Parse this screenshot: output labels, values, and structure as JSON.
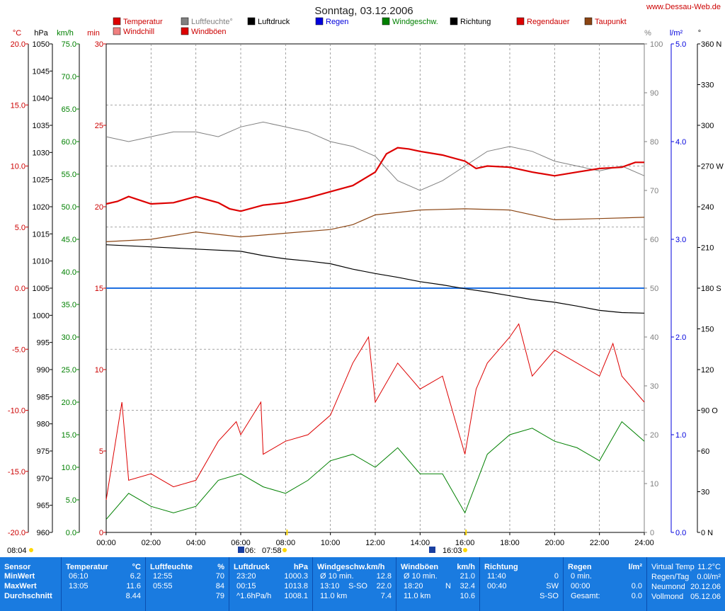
{
  "header": {
    "title": "Sonntag, 03.12.2006",
    "site": "www.Dessau-Web.de",
    "legend": [
      {
        "label": "Temperatur",
        "color": "#dd0000"
      },
      {
        "label": "Windchill",
        "color": "#f08080"
      },
      {
        "label": "Luftfeuchte°",
        "color": "#808080"
      },
      {
        "label": "Windböen",
        "color": "#dd0000"
      },
      {
        "label": "Luftdruck",
        "color": "#000000"
      },
      {
        "label": "Regen",
        "color": "#0000dd"
      },
      {
        "label": "Windgeschw.",
        "color": "#008000"
      },
      {
        "label": "Richtung",
        "color": "#000000"
      },
      {
        "label": "Regendauer",
        "color": "#dd0000"
      },
      {
        "label": "Taupunkt",
        "color": "#8b4513"
      }
    ]
  },
  "axes": {
    "units": {
      "temp": "°C",
      "pressure": "hPa",
      "wind": "km/h",
      "minutes": "min",
      "humidity": "%",
      "rain": "l/m²",
      "direction": "°"
    },
    "temp_ticks": [
      "20.0",
      "15.0",
      "10.0",
      "5.0",
      "0.0",
      "-5.0",
      "-10.0",
      "-15.0",
      "-20.0"
    ],
    "pressure_ticks": [
      "1050",
      "1045",
      "1040",
      "1035",
      "1030",
      "1025",
      "1020",
      "1015",
      "1010",
      "1005",
      "1000",
      "995",
      "990",
      "985",
      "980",
      "975",
      "970",
      "965",
      "960"
    ],
    "wind_ticks": [
      "75.0",
      "70.0",
      "65.0",
      "60.0",
      "55.0",
      "50.0",
      "45.0",
      "40.0",
      "35.0",
      "30.0",
      "25.0",
      "20.0",
      "15.0",
      "10.0",
      "5.0",
      "0.0"
    ],
    "minutes_ticks": [
      "30",
      "25",
      "20",
      "15",
      "10",
      "5",
      "0"
    ],
    "humidity_ticks": [
      "100",
      "90",
      "80",
      "70",
      "60",
      "50",
      "40",
      "30",
      "20",
      "10",
      "0"
    ],
    "rain_ticks": [
      "5.0",
      "4.0",
      "3.0",
      "2.0",
      "1.0",
      "0.0"
    ],
    "direction_ticks": [
      "360 N",
      "330",
      "300",
      "270 W",
      "240",
      "210",
      "180 S",
      "150",
      "120",
      "90 O",
      "60",
      "30",
      "0 N"
    ],
    "time_ticks": [
      "00:00",
      "02:00",
      "04:00",
      "06:00",
      "08:00",
      "10:00",
      "12:00",
      "14:00",
      "16:00",
      "18:00",
      "20:00",
      "22:00",
      "24:00"
    ]
  },
  "sun_moon": {
    "sunrise": "08:04",
    "sunset": "16:03",
    "moon_event_1": "06:",
    "moon_event_2": "07:58"
  },
  "chart_data": {
    "type": "line",
    "title": "Sonntag, 03.12.2006",
    "x_range_hours": [
      0,
      24
    ],
    "series": [
      {
        "name": "Temperatur",
        "unit": "°C",
        "axis": "temp",
        "points": [
          [
            0,
            6.9
          ],
          [
            0.5,
            7.1
          ],
          [
            1,
            7.5
          ],
          [
            2,
            6.9
          ],
          [
            3,
            7.0
          ],
          [
            4,
            7.5
          ],
          [
            5,
            7.0
          ],
          [
            5.5,
            6.5
          ],
          [
            6,
            6.3
          ],
          [
            7,
            6.8
          ],
          [
            8,
            7.0
          ],
          [
            9,
            7.4
          ],
          [
            10,
            7.9
          ],
          [
            11,
            8.4
          ],
          [
            12,
            9.5
          ],
          [
            12.5,
            11.0
          ],
          [
            13,
            11.5
          ],
          [
            13.5,
            11.4
          ],
          [
            14,
            11.2
          ],
          [
            15,
            10.9
          ],
          [
            16,
            10.4
          ],
          [
            16.5,
            9.8
          ],
          [
            17,
            10.0
          ],
          [
            18,
            9.9
          ],
          [
            19,
            9.5
          ],
          [
            20,
            9.2
          ],
          [
            21,
            9.5
          ],
          [
            22,
            9.8
          ],
          [
            23,
            9.9
          ],
          [
            23.6,
            10.3
          ],
          [
            24,
            10.3
          ]
        ]
      },
      {
        "name": "Luftfeuchte°",
        "unit": "%",
        "axis": "humidity",
        "points": [
          [
            0,
            81
          ],
          [
            1,
            80
          ],
          [
            2,
            81
          ],
          [
            3,
            82
          ],
          [
            4,
            82
          ],
          [
            5,
            81
          ],
          [
            6,
            83
          ],
          [
            7,
            84
          ],
          [
            8,
            83
          ],
          [
            9,
            82
          ],
          [
            10,
            80
          ],
          [
            11,
            79
          ],
          [
            12,
            77
          ],
          [
            13,
            72
          ],
          [
            14,
            70
          ],
          [
            15,
            72
          ],
          [
            16,
            75
          ],
          [
            17,
            78
          ],
          [
            18,
            79
          ],
          [
            19,
            78
          ],
          [
            20,
            76
          ],
          [
            21,
            75
          ],
          [
            22,
            74
          ],
          [
            23,
            75
          ],
          [
            24,
            73
          ]
        ]
      },
      {
        "name": "Luftdruck",
        "unit": "hPa",
        "axis": "pressure",
        "points": [
          [
            0,
            1013
          ],
          [
            2,
            1012.6
          ],
          [
            4,
            1012.2
          ],
          [
            6,
            1011.8
          ],
          [
            7,
            1011.0
          ],
          [
            8,
            1010.4
          ],
          [
            9,
            1010.0
          ],
          [
            10,
            1009.5
          ],
          [
            11,
            1008.5
          ],
          [
            12,
            1007.7
          ],
          [
            13,
            1007.0
          ],
          [
            14,
            1006.2
          ],
          [
            15,
            1005.6
          ],
          [
            16,
            1004.9
          ],
          [
            17,
            1004.3
          ],
          [
            18,
            1003.6
          ],
          [
            19,
            1002.9
          ],
          [
            20,
            1002.4
          ],
          [
            21,
            1001.7
          ],
          [
            22,
            1000.9
          ],
          [
            23,
            1000.5
          ],
          [
            24,
            1000.4
          ]
        ]
      },
      {
        "name": "Taupunkt",
        "unit": "°C",
        "axis": "temp",
        "points": [
          [
            0,
            3.8
          ],
          [
            2,
            4.0
          ],
          [
            4,
            4.6
          ],
          [
            6,
            4.2
          ],
          [
            8,
            4.5
          ],
          [
            10,
            4.8
          ],
          [
            11,
            5.2
          ],
          [
            12,
            6.0
          ],
          [
            13,
            6.2
          ],
          [
            14,
            6.4
          ],
          [
            16,
            6.5
          ],
          [
            18,
            6.4
          ],
          [
            20,
            5.6
          ],
          [
            22,
            5.7
          ],
          [
            24,
            5.8
          ]
        ]
      },
      {
        "name": "Windgeschw.",
        "unit": "km/h",
        "axis": "wind",
        "points": [
          [
            0,
            2
          ],
          [
            1,
            6
          ],
          [
            2,
            4
          ],
          [
            3,
            3
          ],
          [
            4,
            4
          ],
          [
            5,
            8
          ],
          [
            6,
            9
          ],
          [
            7,
            7
          ],
          [
            8,
            6
          ],
          [
            9,
            8
          ],
          [
            10,
            11
          ],
          [
            11,
            12
          ],
          [
            12,
            10
          ],
          [
            13,
            13
          ],
          [
            14,
            9
          ],
          [
            15,
            9
          ],
          [
            15.5,
            6
          ],
          [
            16,
            3
          ],
          [
            17,
            12
          ],
          [
            18,
            15
          ],
          [
            19,
            16
          ],
          [
            20,
            14
          ],
          [
            21,
            13
          ],
          [
            22,
            11
          ],
          [
            23,
            17
          ],
          [
            24,
            14
          ]
        ]
      },
      {
        "name": "Windböen",
        "unit": "km/h",
        "axis": "wind",
        "points": [
          [
            0,
            5
          ],
          [
            0.7,
            20
          ],
          [
            1,
            8
          ],
          [
            2,
            9
          ],
          [
            3,
            7
          ],
          [
            4,
            8
          ],
          [
            5,
            14
          ],
          [
            5.8,
            17
          ],
          [
            6,
            15
          ],
          [
            6.9,
            20
          ],
          [
            7,
            12
          ],
          [
            8,
            14
          ],
          [
            9,
            15
          ],
          [
            10,
            18
          ],
          [
            11,
            26
          ],
          [
            11.7,
            30
          ],
          [
            12,
            20
          ],
          [
            13,
            26
          ],
          [
            14,
            22
          ],
          [
            15,
            24
          ],
          [
            15.5,
            18
          ],
          [
            16,
            12
          ],
          [
            16.5,
            22
          ],
          [
            17,
            26
          ],
          [
            18,
            30
          ],
          [
            18.4,
            32
          ],
          [
            19,
            24
          ],
          [
            20,
            28
          ],
          [
            21,
            26
          ],
          [
            22,
            24
          ],
          [
            22.6,
            29
          ],
          [
            23,
            24
          ],
          [
            24,
            20
          ]
        ]
      }
    ]
  },
  "stats": {
    "sensor": {
      "title": "Sensor",
      "rows": [
        "MinWert",
        "MaxWert",
        "Durchschnitt"
      ]
    },
    "temperature": {
      "title": "Temperatur",
      "unit": "°C",
      "rows": [
        {
          "time": "06:10",
          "value": "6.2"
        },
        {
          "time": "13:05",
          "value": "11.6"
        },
        {
          "time": "",
          "value": "8.44"
        }
      ]
    },
    "humidity": {
      "title": "Luftfeuchte",
      "unit": "%",
      "rows": [
        {
          "time": "12:55",
          "value": "70"
        },
        {
          "time": "05:55",
          "value": "84"
        },
        {
          "time": "",
          "value": "79"
        }
      ]
    },
    "pressure": {
      "title": "Luftdruck",
      "unit": "hPa",
      "rows": [
        {
          "time": "23:20",
          "value": "1000.3"
        },
        {
          "time": "00:15",
          "value": "1013.8"
        },
        {
          "time": "^1.6hPa/h",
          "value": "1008.1"
        }
      ]
    },
    "wind": {
      "title": "Windgeschw.km/h",
      "unit": "",
      "rows": [
        {
          "time": "Ø 10 min.",
          "dir": "",
          "value": "12.8"
        },
        {
          "time": "13:10",
          "dir": "S-SO",
          "value": "22.0"
        },
        {
          "time": "11.0 km",
          "dir": "",
          "value": "7.4"
        }
      ]
    },
    "gusts": {
      "title": "Windböen",
      "unit": "km/h",
      "rows": [
        {
          "time": "Ø 10 min.",
          "dir": "",
          "value": "21.0"
        },
        {
          "time": "18:20",
          "dir": "N",
          "value": "32.4"
        },
        {
          "time": "11.0 km",
          "dir": "",
          "value": "10.6"
        }
      ]
    },
    "direction": {
      "title": "Richtung",
      "unit": "",
      "rows": [
        {
          "time": "11:40",
          "value": "0"
        },
        {
          "time": "00:40",
          "value": "SW"
        },
        {
          "time": "",
          "value": "S-SO"
        }
      ]
    },
    "rain": {
      "title": "Regen",
      "unit": "l/m²",
      "rows": [
        {
          "time": "0 min.",
          "value": ""
        },
        {
          "time": "00:00",
          "value": "0.0"
        },
        {
          "time": "Gesamt:",
          "value": "0.0"
        }
      ]
    },
    "extra": {
      "rows": [
        {
          "label": "Virtual Temp",
          "value": "11.2°C"
        },
        {
          "label": "Regen/Tag",
          "value": "0.0l/m²"
        },
        {
          "label": "Neumond",
          "value": "20.12.06"
        },
        {
          "label": "Vollmond",
          "value": "05.12.06"
        }
      ]
    }
  }
}
